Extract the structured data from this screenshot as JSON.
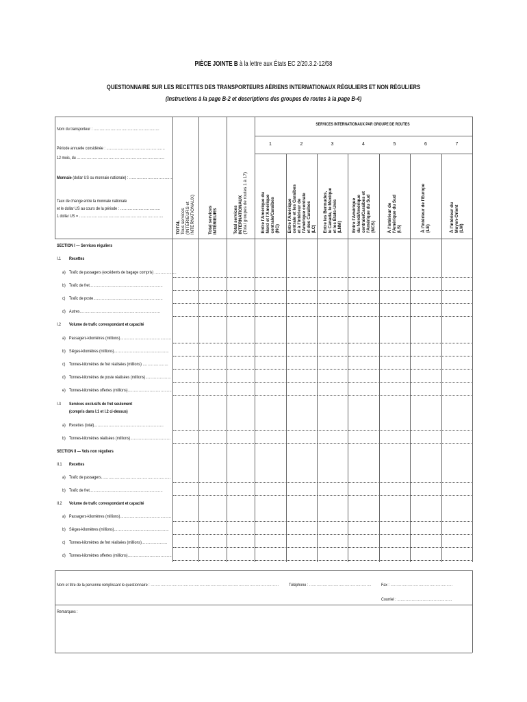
{
  "header": {
    "attachment_bold": "PIÈCE JOINTE B",
    "attachment_rest": " à la lettre aux États EC 2/20.3.2-12/58",
    "title": "QUESTIONNAIRE SUR LES RECETTES DES TRANSPORTEURS AÉRIENS INTERNATIONAUX RÉGULIERS ET NON RÉGULIERS",
    "subtitle": "(Instructions à la page B-2 et descriptions des groupes de routes à la page B-4)"
  },
  "info": {
    "carrier": "Nom du transporteur : ………………………………………………",
    "period": "Période annuelle considérée : …………………………………………",
    "months": "12 mois, du ………………………………………………………………",
    "currency_bold": "Monnaie",
    "currency_rest": " (dollar US ou monnaie nationale) : ………………………………",
    "rate1": "Taux de change entre la monnaie nationale",
    "rate2": "et le dollar US au cours de la période : ……………………………",
    "rate3": "1 dollar US = ……………………………………………………………"
  },
  "columns": {
    "total": [
      "TOTAL",
      "Tous services",
      "(INTÉRIEURS et",
      "INTERNATIONAUX)"
    ],
    "domestic": [
      "Total services",
      "INTÉRIEURS"
    ],
    "international": [
      "Total services",
      "INTERNATIONAUX",
      "(Total groupes de routes 1 à 17)"
    ],
    "group_header": "SERVICES INTERNATIONAUX PAR GROUPE DE ROUTES",
    "routes": [
      {
        "num": "1",
        "lines": [
          "Entre l'Amérique du",
          "Nord et l'Amérique",
          "centrale/Caraïbes",
          "(NC)"
        ]
      },
      {
        "num": "2",
        "lines": [
          "Entre l'Amérique",
          "centrale et les Caraïbes",
          "et à l'intérieur de",
          "l'Amérique centrale",
          "et des Caraïbes",
          "(LC)"
        ]
      },
      {
        "num": "3",
        "lines": [
          "Entre les Bermudes,",
          "le Canada, le Mexique",
          "et les États-Unis",
          "(LNM)"
        ]
      },
      {
        "num": "4",
        "lines": [
          "Entre l'Amérique",
          "du Nord/Amérique",
          "centrale/Caraïbes et",
          "l'Amérique du Sud",
          "(NCS)"
        ]
      },
      {
        "num": "5",
        "lines": [
          "À l'intérieur de",
          "l'Amérique du Sud",
          "(LS)"
        ]
      },
      {
        "num": "6",
        "lines": [
          "À l'intérieur de l'Europe",
          "(LE)"
        ]
      },
      {
        "num": "7",
        "lines": [
          "À l'intérieur du",
          "Moyen-Orient",
          "(LM)"
        ]
      }
    ]
  },
  "rows": [
    {
      "kind": "section",
      "text": "SECTION I — Services réguliers"
    },
    {
      "kind": "heading",
      "code": "I.1",
      "text": "Recettes"
    },
    {
      "kind": "data",
      "code": "a)",
      "text": "Trafic de passagers (excédents de bagage compris) ………………"
    },
    {
      "kind": "data",
      "code": "b)",
      "text": "Trafic de fret……………………………………………………"
    },
    {
      "kind": "data",
      "code": "c)",
      "text": "Trafic de poste…………………………………………………"
    },
    {
      "kind": "data",
      "code": "d)",
      "text": "Autres…………………………………………………………"
    },
    {
      "kind": "heading",
      "code": "I.2",
      "text": "Volume de trafic correspondant et capacité"
    },
    {
      "kind": "data",
      "code": "a)",
      "text": "Passagers-kilomètres (millions)……………………………………"
    },
    {
      "kind": "data",
      "code": "b)",
      "text": "Sièges-kilomètres (millions)………………………………………"
    },
    {
      "kind": "data",
      "code": "c)",
      "text": "Tonnes-kilomètres de fret réalisées (millions) …………………"
    },
    {
      "kind": "data",
      "code": "d)",
      "text": "Tonnes-kilomètres de poste réalisées (millions)…………………"
    },
    {
      "kind": "data",
      "code": "e)",
      "text": "Tonnes-kilomètres offertes (millions)………………………………"
    },
    {
      "kind": "heading2",
      "code": "I.3",
      "text": "Services exclusifs de fret seulement",
      "text2": "(compris dans I.1 et I.2 ci-dessus)"
    },
    {
      "kind": "data",
      "code": "a)",
      "text": "Recettes (total)…………………………………………………"
    },
    {
      "kind": "data",
      "code": "b)",
      "text": "Tonnes-kilomètres réalisées (millions)……………………………"
    },
    {
      "kind": "section",
      "text": "SECTION II — Vols non réguliers"
    },
    {
      "kind": "heading",
      "code": "II.1",
      "text": "Recettes"
    },
    {
      "kind": "data",
      "code": "a)",
      "text": "Trafic de passagers…………………………………………………"
    },
    {
      "kind": "data",
      "code": "b)",
      "text": "Trafic de fret……………………………………………………"
    },
    {
      "kind": "heading",
      "code": "II.2",
      "text": "Volume de trafic correspondant et capacité"
    },
    {
      "kind": "data",
      "code": "a)",
      "text": "Passagers-kilomètres (millions)……………………………………"
    },
    {
      "kind": "data",
      "code": "b)",
      "text": "Sièges-kilomètres (millions)………………………………………"
    },
    {
      "kind": "data",
      "code": "c)",
      "text": "Tonnes-kilomètres de fret réalisées (millions)…………………"
    },
    {
      "kind": "data",
      "code": "d)",
      "text": "Tonnes-kilomètres offertes (millions)………………………………"
    }
  ],
  "footer": {
    "name": "Nom et titre de la personne remplissant le questionnaire : ……………………………………………………………………………………………",
    "phone": "Téléphone : ……………………………………………",
    "fax": "Fax : ……………………………………………",
    "email": "Courriel : ………………………………………",
    "remarks": "Remarques :"
  }
}
